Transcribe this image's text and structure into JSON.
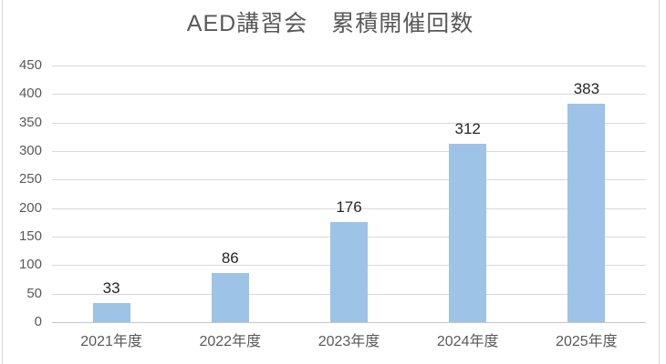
{
  "chart_data": {
    "type": "bar",
    "title": "AED講習会　累積開催回数",
    "categories": [
      "2021年度",
      "2022年度",
      "2023年度",
      "2024年度",
      "2025年度"
    ],
    "values": [
      33,
      86,
      176,
      312,
      383
    ],
    "data_labels": [
      "33",
      "86",
      "176",
      "312",
      "383"
    ],
    "xlabel": "",
    "ylabel": "",
    "ylim": [
      0,
      450
    ],
    "ytick_step": 50,
    "ytick_labels": [
      "0",
      "50",
      "100",
      "150",
      "200",
      "250",
      "300",
      "350",
      "400",
      "450"
    ],
    "grid": true,
    "legend_position": "none",
    "colors": {
      "bar_fill": "#9DC3E6",
      "gridline": "#D9D9D9",
      "axis_line": "#C6C6C6",
      "axis_label": "#595959",
      "title": "#595959",
      "data_label": "#262626",
      "frame_border": "#D9D9D9",
      "background": "#FFFFFF"
    }
  }
}
